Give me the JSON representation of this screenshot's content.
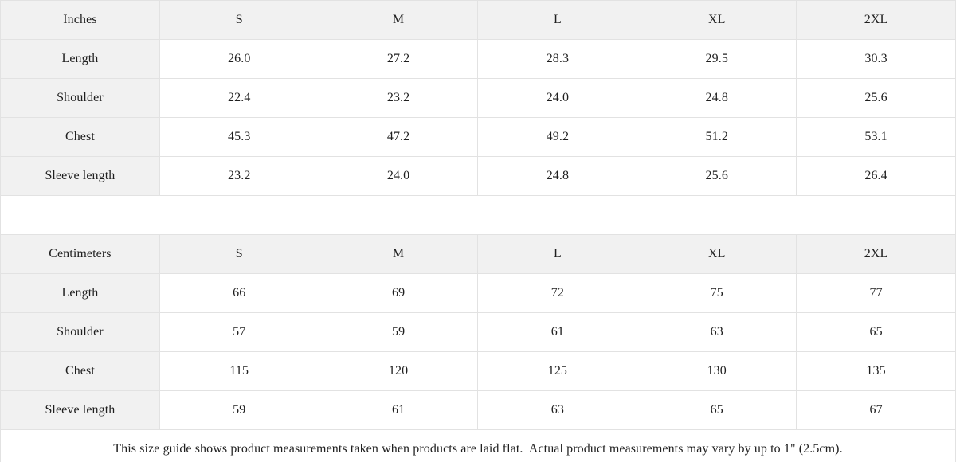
{
  "colors": {
    "header_bg": "#f1f1f1",
    "border": "#e2e2e2",
    "text": "#1f1f1f",
    "background": "#ffffff"
  },
  "chart_data": [
    {
      "type": "table",
      "name": "inches",
      "title": "Inches",
      "columns": [
        "S",
        "M",
        "L",
        "XL",
        "2XL"
      ],
      "rows": [
        {
          "label": "Length",
          "values": [
            "26.0",
            "27.2",
            "28.3",
            "29.5",
            "30.3"
          ]
        },
        {
          "label": "Shoulder",
          "values": [
            "22.4",
            "23.2",
            "24.0",
            "24.8",
            "25.6"
          ]
        },
        {
          "label": "Chest",
          "values": [
            "45.3",
            "47.2",
            "49.2",
            "51.2",
            "53.1"
          ]
        },
        {
          "label": "Sleeve length",
          "values": [
            "23.2",
            "24.0",
            "24.8",
            "25.6",
            "26.4"
          ]
        }
      ]
    },
    {
      "type": "table",
      "name": "centimeters",
      "title": "Centimeters",
      "columns": [
        "S",
        "M",
        "L",
        "XL",
        "2XL"
      ],
      "rows": [
        {
          "label": "Length",
          "values": [
            "66",
            "69",
            "72",
            "75",
            "77"
          ]
        },
        {
          "label": "Shoulder",
          "values": [
            "57",
            "59",
            "61",
            "63",
            "65"
          ]
        },
        {
          "label": "Chest",
          "values": [
            "115",
            "120",
            "125",
            "130",
            "135"
          ]
        },
        {
          "label": "Sleeve length",
          "values": [
            "59",
            "61",
            "63",
            "65",
            "67"
          ]
        }
      ]
    }
  ],
  "footer": {
    "note": "This size guide shows product measurements taken when products are laid flat.  Actual product measurements may vary by up to 1\" (2.5cm)."
  }
}
